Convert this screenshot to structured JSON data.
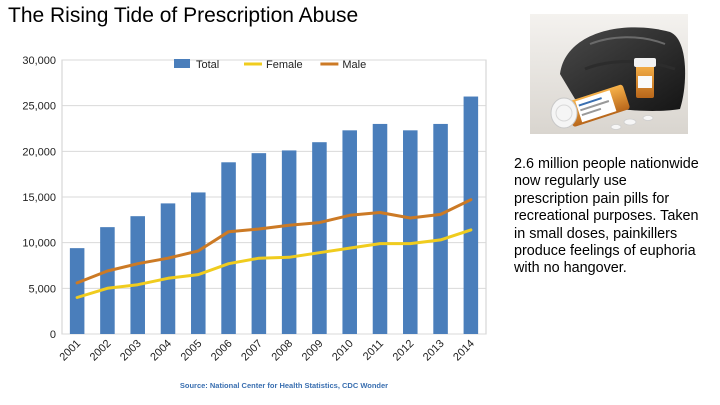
{
  "slide": {
    "title": "The Rising Tide of Prescription Abuse",
    "caption": "2.6 million people nationwide now regularly use prescription pain pills for recreational purposes. Taken in small doses, painkillers produce feelings of euphoria with no hangover."
  },
  "photo": {
    "subject": "prescription-pill-bottles-on-bag"
  },
  "colors": {
    "total": "#4a7ebb",
    "female": "#f0cc1e",
    "male": "#cc7a25",
    "grid": "#d9d9d9",
    "axis_text": "#222222",
    "source_text": "#3a6fb0"
  },
  "chart_data": {
    "type": "bar",
    "title": "",
    "xlabel": "",
    "ylabel": "",
    "categories": [
      "2001",
      "2002",
      "2003",
      "2004",
      "2005",
      "2006",
      "2007",
      "2008",
      "2009",
      "2010",
      "2011",
      "2012",
      "2013",
      "2014"
    ],
    "series": [
      {
        "name": "Total",
        "type": "bar",
        "values": [
          9400,
          11700,
          12900,
          14300,
          15500,
          18800,
          19800,
          20100,
          21000,
          22300,
          23000,
          22300,
          23000,
          26000
        ]
      },
      {
        "name": "Female",
        "type": "line",
        "values": [
          4000,
          5000,
          5400,
          6100,
          6500,
          7700,
          8300,
          8400,
          8900,
          9400,
          9900,
          9900,
          10300,
          11400
        ]
      },
      {
        "name": "Male",
        "type": "line",
        "values": [
          5600,
          6900,
          7700,
          8300,
          9100,
          11200,
          11500,
          11900,
          12200,
          13000,
          13300,
          12700,
          13100,
          14700
        ]
      }
    ],
    "ylim": [
      0,
      30000
    ],
    "yticks": [
      0,
      5000,
      10000,
      15000,
      20000,
      25000,
      30000
    ],
    "ytick_labels": [
      "0",
      "5,000",
      "10,000",
      "15,000",
      "20,000",
      "25,000",
      "30,000"
    ],
    "grid": true,
    "legend_position": "top-center",
    "source": "Source: National Center for Health Statistics, CDC Wonder"
  }
}
